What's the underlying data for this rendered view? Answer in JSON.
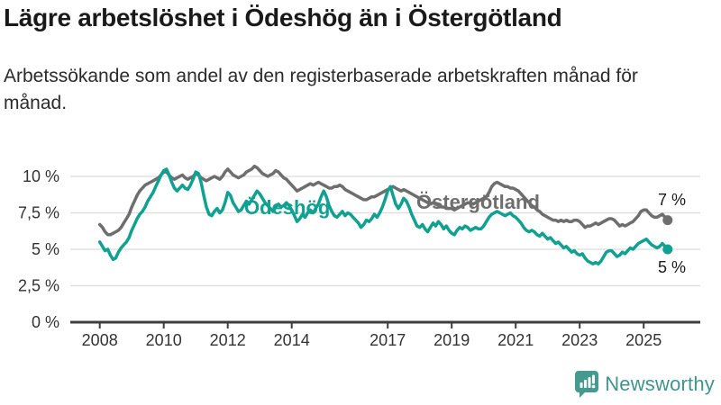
{
  "header": {
    "title": "Lägre arbetslöshet i Ödeshög än i Östergötland",
    "subtitle": "Arbetssökande som andel av den registerbaserade arbetskraften månad för månad."
  },
  "chart_data": {
    "type": "line",
    "unit": "percent",
    "x_start": "2008-01",
    "x_end": "2025-10",
    "x_frequency": "monthly",
    "ylim": [
      0,
      10.8
    ],
    "grid": "horizontal",
    "yticks": [
      {
        "label": "0 %",
        "value": 0
      },
      {
        "label": "2,5 %",
        "value": 2.5
      },
      {
        "label": "5 %",
        "value": 5
      },
      {
        "label": "7,5 %",
        "value": 7.5
      },
      {
        "label": "10 %",
        "value": 10
      }
    ],
    "xticks": [
      {
        "label": "2008",
        "year": 2008
      },
      {
        "label": "2010",
        "year": 2010
      },
      {
        "label": "2012",
        "year": 2012
      },
      {
        "label": "2014",
        "year": 2014
      },
      {
        "label": "2017",
        "year": 2017
      },
      {
        "label": "2019",
        "year": 2019
      },
      {
        "label": "2021",
        "year": 2021
      },
      {
        "label": "2023",
        "year": 2023
      },
      {
        "label": "2025",
        "year": 2025
      }
    ],
    "series": [
      {
        "name": "Ödeshög",
        "color": "#10a191",
        "end_label": "5 %",
        "end_value": 5.0,
        "values": [
          5.5,
          5.2,
          4.9,
          5.0,
          4.6,
          4.3,
          4.4,
          4.8,
          5.1,
          5.3,
          5.5,
          5.8,
          6.3,
          6.7,
          7.1,
          7.4,
          7.6,
          7.9,
          8.3,
          8.6,
          8.9,
          9.3,
          9.7,
          10.1,
          10.4,
          10.5,
          10.1,
          9.6,
          9.2,
          9.0,
          9.2,
          9.4,
          9.2,
          9.1,
          9.4,
          9.8,
          10.3,
          10.2,
          9.6,
          8.7,
          7.9,
          7.4,
          7.3,
          7.6,
          7.8,
          7.5,
          7.7,
          8.2,
          8.9,
          8.7,
          8.2,
          7.9,
          7.6,
          7.7,
          8.0,
          8.3,
          8.1,
          8.4,
          8.7,
          9.0,
          8.8,
          8.5,
          8.2,
          8.0,
          7.8,
          7.6,
          7.9,
          8.1,
          7.9,
          8.0,
          8.2,
          8.0,
          7.7,
          7.3,
          6.9,
          7.1,
          7.4,
          7.2,
          7.5,
          7.7,
          7.5,
          7.8,
          8.1,
          8.6,
          9.0,
          8.6,
          8.0,
          7.6,
          7.3,
          7.2,
          7.4,
          7.6,
          7.3,
          7.5,
          7.4,
          7.2,
          7.0,
          6.8,
          6.5,
          6.7,
          7.0,
          6.9,
          7.1,
          7.4,
          7.2,
          7.5,
          7.9,
          8.4,
          9.0,
          9.3,
          8.7,
          8.1,
          7.8,
          8.1,
          8.5,
          8.3,
          7.9,
          7.4,
          7.0,
          6.6,
          6.5,
          6.7,
          6.4,
          6.2,
          6.5,
          6.8,
          6.6,
          6.9,
          6.7,
          6.4,
          6.6,
          6.3,
          6.1,
          6.0,
          6.3,
          6.5,
          6.4,
          6.6,
          6.5,
          6.3,
          6.4,
          6.5,
          6.4,
          6.4,
          6.6,
          6.9,
          7.2,
          7.4,
          7.5,
          7.6,
          7.5,
          7.4,
          7.3,
          7.4,
          7.5,
          7.3,
          7.2,
          7.0,
          6.8,
          6.5,
          6.3,
          6.2,
          6.3,
          6.2,
          6.0,
          5.9,
          6.1,
          5.9,
          5.7,
          5.8,
          5.6,
          5.4,
          5.5,
          5.3,
          5.1,
          5.2,
          5.0,
          4.8,
          4.9,
          4.7,
          4.6,
          4.7,
          4.4,
          4.2,
          4.1,
          4.0,
          4.1,
          4.0,
          4.2,
          4.5,
          4.8,
          4.9,
          4.9,
          4.7,
          4.5,
          4.6,
          4.8,
          4.7,
          4.9,
          5.1,
          5.0,
          5.2,
          5.4,
          5.5,
          5.6,
          5.7,
          5.5,
          5.3,
          5.2,
          5.1,
          5.2,
          5.4,
          5.2,
          5.0
        ]
      },
      {
        "name": "Östergötland",
        "color": "#6e6e6e",
        "end_label": "7 %",
        "end_value": 7.0,
        "values": [
          6.7,
          6.5,
          6.2,
          6.0,
          6.0,
          6.1,
          6.2,
          6.3,
          6.5,
          6.8,
          7.1,
          7.4,
          7.9,
          8.3,
          8.7,
          9.0,
          9.2,
          9.4,
          9.5,
          9.6,
          9.7,
          9.8,
          9.9,
          10.1,
          10.3,
          10.3,
          10.1,
          9.9,
          9.8,
          9.9,
          10.0,
          10.1,
          9.9,
          9.8,
          9.9,
          10.0,
          10.2,
          10.1,
          9.9,
          9.8,
          9.7,
          9.8,
          9.9,
          10.0,
          9.9,
          9.8,
          10.0,
          10.3,
          10.5,
          10.3,
          10.1,
          10.0,
          9.9,
          10.0,
          10.1,
          10.3,
          10.4,
          10.5,
          10.7,
          10.6,
          10.4,
          10.2,
          10.1,
          10.0,
          10.1,
          10.2,
          10.4,
          10.3,
          10.1,
          9.9,
          9.8,
          9.6,
          9.4,
          9.2,
          9.0,
          9.1,
          9.2,
          9.3,
          9.4,
          9.5,
          9.4,
          9.5,
          9.6,
          9.5,
          9.4,
          9.3,
          9.2,
          9.2,
          9.3,
          9.3,
          9.4,
          9.3,
          9.1,
          9.0,
          8.9,
          8.8,
          8.7,
          8.6,
          8.5,
          8.4,
          8.4,
          8.5,
          8.6,
          8.6,
          8.7,
          8.8,
          8.9,
          9.0,
          9.1,
          9.2,
          9.3,
          9.2,
          9.1,
          9.0,
          9.1,
          9.0,
          8.9,
          8.8,
          8.7,
          8.6,
          8.5,
          8.4,
          8.3,
          8.2,
          8.1,
          8.2,
          8.1,
          8.0,
          7.9,
          7.9,
          7.8,
          7.8,
          7.8,
          7.7,
          7.8,
          7.9,
          8.0,
          8.1,
          8.2,
          8.2,
          8.1,
          8.2,
          8.3,
          8.4,
          8.5,
          8.6,
          8.9,
          9.3,
          9.5,
          9.6,
          9.5,
          9.4,
          9.3,
          9.3,
          9.2,
          9.2,
          9.1,
          9.0,
          8.8,
          8.6,
          8.4,
          8.2,
          8.0,
          7.9,
          7.7,
          7.6,
          7.4,
          7.3,
          7.2,
          7.1,
          7.0,
          7.0,
          6.9,
          7.0,
          6.9,
          7.0,
          6.9,
          6.9,
          7.0,
          7.0,
          6.9,
          6.7,
          6.5,
          6.6,
          6.6,
          6.7,
          6.8,
          6.7,
          6.8,
          6.9,
          7.0,
          7.1,
          7.1,
          7.0,
          6.8,
          6.6,
          6.7,
          6.6,
          6.7,
          6.8,
          6.9,
          7.1,
          7.3,
          7.6,
          7.7,
          7.7,
          7.5,
          7.3,
          7.2,
          7.2,
          7.3,
          7.4,
          7.2,
          7.0
        ]
      }
    ]
  },
  "footer": {
    "brand": "Newsworthy"
  }
}
